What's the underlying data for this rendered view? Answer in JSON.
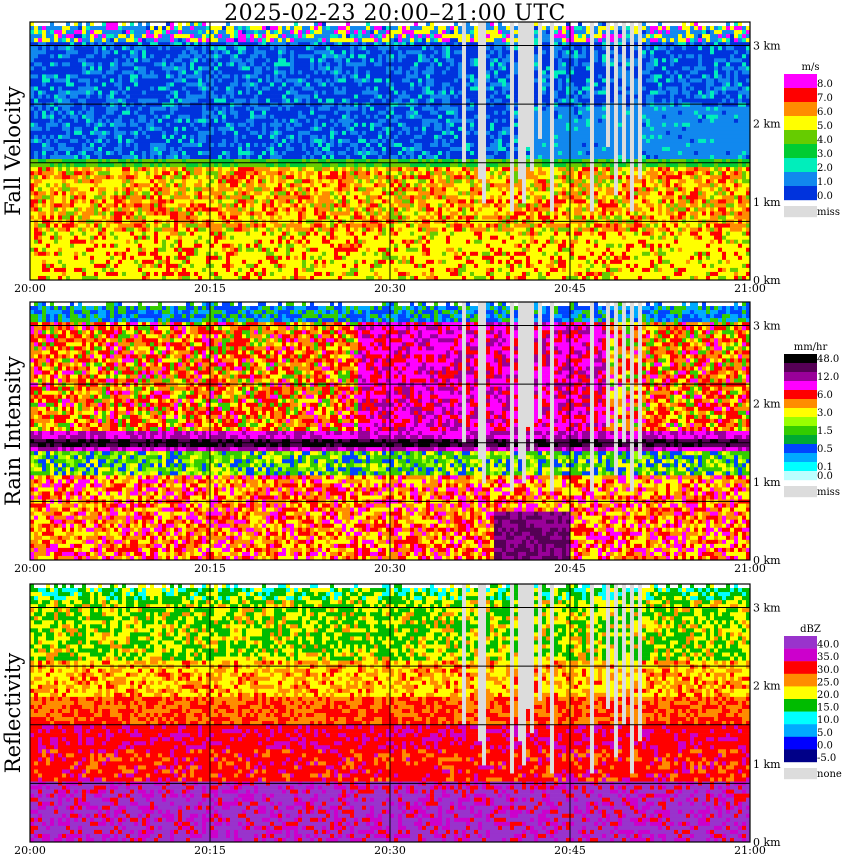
{
  "title": "2025-02-23   20:00–21:00 UTC",
  "time_ticks": [
    "20:00",
    "20:15",
    "20:30",
    "20:45",
    "21:00"
  ],
  "height_ticks": [
    "3 km",
    "2 km",
    "1 km",
    "0 km"
  ],
  "colors": {
    "missing": "#dcdcdc",
    "grid": "#000000",
    "frame": "#000000"
  },
  "chart_data": [
    {
      "type": "heatmap",
      "title": "Fall Velocity",
      "ylabel": "Fall Velocity",
      "xlabel": "",
      "x_range": [
        "20:00",
        "21:00"
      ],
      "y_range_km": [
        0,
        3.3
      ],
      "legend_unit": "m/s",
      "legend_entries": [
        {
          "label": "8.0",
          "color": "#ff00ff"
        },
        {
          "label": "7.0",
          "color": "#ff0000"
        },
        {
          "label": "6.0",
          "color": "#ff8c00"
        },
        {
          "label": "5.0",
          "color": "#ffff00"
        },
        {
          "label": "4.0",
          "color": "#66cc00"
        },
        {
          "label": "3.0",
          "color": "#00cc33"
        },
        {
          "label": "2.0",
          "color": "#00eebb"
        },
        {
          "label": "1.0",
          "color": "#1188ee"
        },
        {
          "label": "0.0",
          "color": "#0033dd"
        },
        {
          "label": "miss",
          "color": "#dcdcdc"
        }
      ],
      "melting_layer_km": 1.5,
      "above_layer_typical": "1.0",
      "below_layer_typical": "6.0"
    },
    {
      "type": "heatmap",
      "title": "Rain Intensity",
      "ylabel": "Rain Intensity",
      "xlabel": "",
      "x_range": [
        "20:00",
        "21:00"
      ],
      "y_range_km": [
        0,
        3.3
      ],
      "legend_unit": "mm/hr",
      "legend_entries": [
        {
          "label": "48.0",
          "color": "#000000"
        },
        {
          "label": "",
          "color": "#550055"
        },
        {
          "label": "12.0",
          "color": "#990099"
        },
        {
          "label": "",
          "color": "#ff00ff"
        },
        {
          "label": "6.0",
          "color": "#ff0000"
        },
        {
          "label": "",
          "color": "#ff8c00"
        },
        {
          "label": "3.0",
          "color": "#ffff00"
        },
        {
          "label": "",
          "color": "#99ff00"
        },
        {
          "label": "1.5",
          "color": "#33cc00"
        },
        {
          "label": "",
          "color": "#00aa33"
        },
        {
          "label": "0.5",
          "color": "#0044ff"
        },
        {
          "label": "",
          "color": "#00aaff"
        },
        {
          "label": "0.1",
          "color": "#00ffff"
        },
        {
          "label": "0.0",
          "color": "#bbffff"
        },
        {
          "label": "miss",
          "color": "#dcdcdc"
        }
      ],
      "melting_layer_km": 1.5
    },
    {
      "type": "heatmap",
      "title": "Reflectivity",
      "ylabel": "Reflectivity",
      "xlabel": "",
      "x_range": [
        "20:00",
        "21:00"
      ],
      "y_range_km": [
        0,
        3.3
      ],
      "legend_unit": "dBZ",
      "legend_entries": [
        {
          "label": "40.0",
          "color": "#9933cc"
        },
        {
          "label": "35.0",
          "color": "#cc00cc"
        },
        {
          "label": "30.0",
          "color": "#ff0000"
        },
        {
          "label": "25.0",
          "color": "#ff8c00"
        },
        {
          "label": "20.0",
          "color": "#ffff00"
        },
        {
          "label": "15.0",
          "color": "#00bb00"
        },
        {
          "label": "10.0",
          "color": "#00ffff"
        },
        {
          "label": "5.0",
          "color": "#00aaff"
        },
        {
          "label": "0.0",
          "color": "#0000ff"
        },
        {
          "label": "-5.0",
          "color": "#000088"
        },
        {
          "label": "none",
          "color": "#dcdcdc"
        }
      ],
      "melting_layer_km": 1.5
    }
  ]
}
